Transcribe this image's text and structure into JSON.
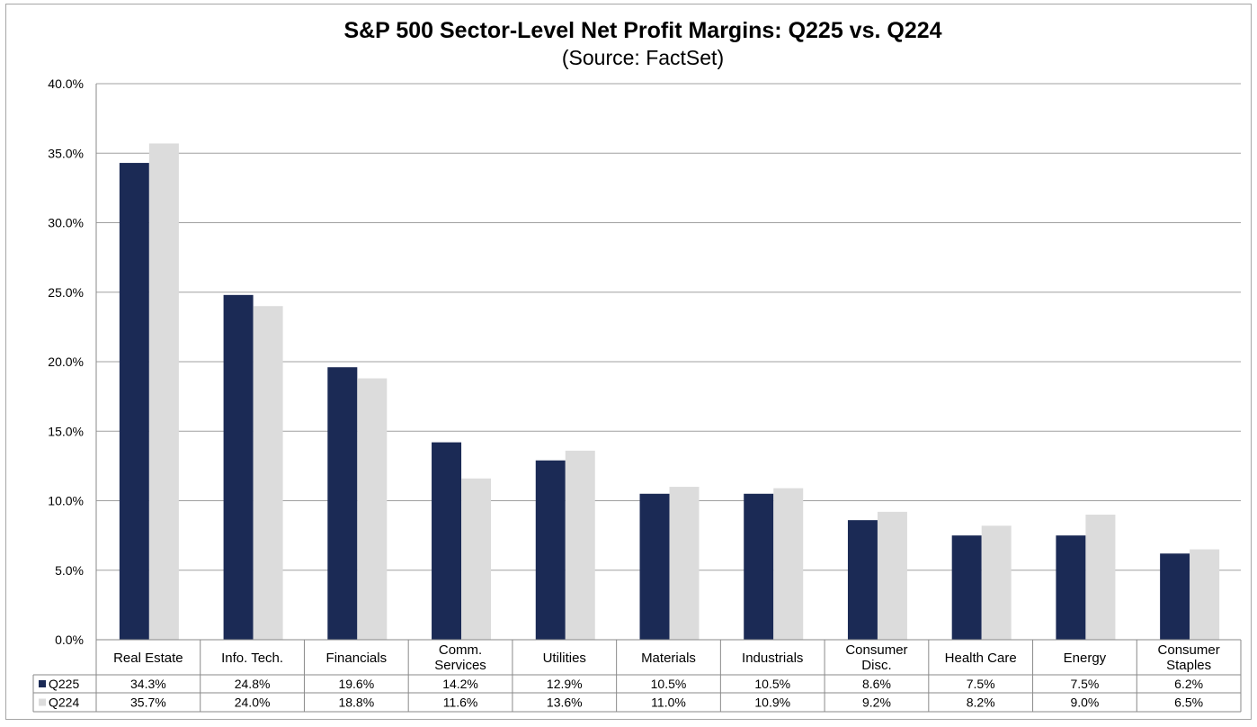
{
  "chart_data": {
    "type": "bar",
    "title": "S&P 500 Sector-Level Net Profit Margins: Q225 vs. Q224",
    "subtitle": "(Source: FactSet)",
    "categories": [
      "Real Estate",
      "Info. Tech.",
      "Financials",
      "Comm. Services",
      "Utilities",
      "Materials",
      "Industrials",
      "Consumer Disc.",
      "Health Care",
      "Energy",
      "Consumer Staples"
    ],
    "series": [
      {
        "name": "Q225",
        "color": "#1b2a55",
        "values": [
          34.3,
          24.8,
          19.6,
          14.2,
          12.9,
          10.5,
          10.5,
          8.6,
          7.5,
          7.5,
          6.2
        ],
        "labels": [
          "34.3%",
          "24.8%",
          "19.6%",
          "14.2%",
          "12.9%",
          "10.5%",
          "10.5%",
          "8.6%",
          "7.5%",
          "7.5%",
          "6.2%"
        ]
      },
      {
        "name": "Q224",
        "color": "#dcdcdc",
        "values": [
          35.7,
          24.0,
          18.8,
          11.6,
          13.6,
          11.0,
          10.9,
          9.2,
          8.2,
          9.0,
          6.5
        ],
        "labels": [
          "35.7%",
          "24.0%",
          "18.8%",
          "11.6%",
          "13.6%",
          "11.0%",
          "10.9%",
          "9.2%",
          "8.2%",
          "9.0%",
          "6.5%"
        ]
      }
    ],
    "ylim": [
      0,
      40
    ],
    "yticks": [
      "0.0%",
      "5.0%",
      "10.0%",
      "15.0%",
      "20.0%",
      "25.0%",
      "30.0%",
      "35.0%",
      "40.0%"
    ],
    "grid": true,
    "legend": "data table"
  }
}
